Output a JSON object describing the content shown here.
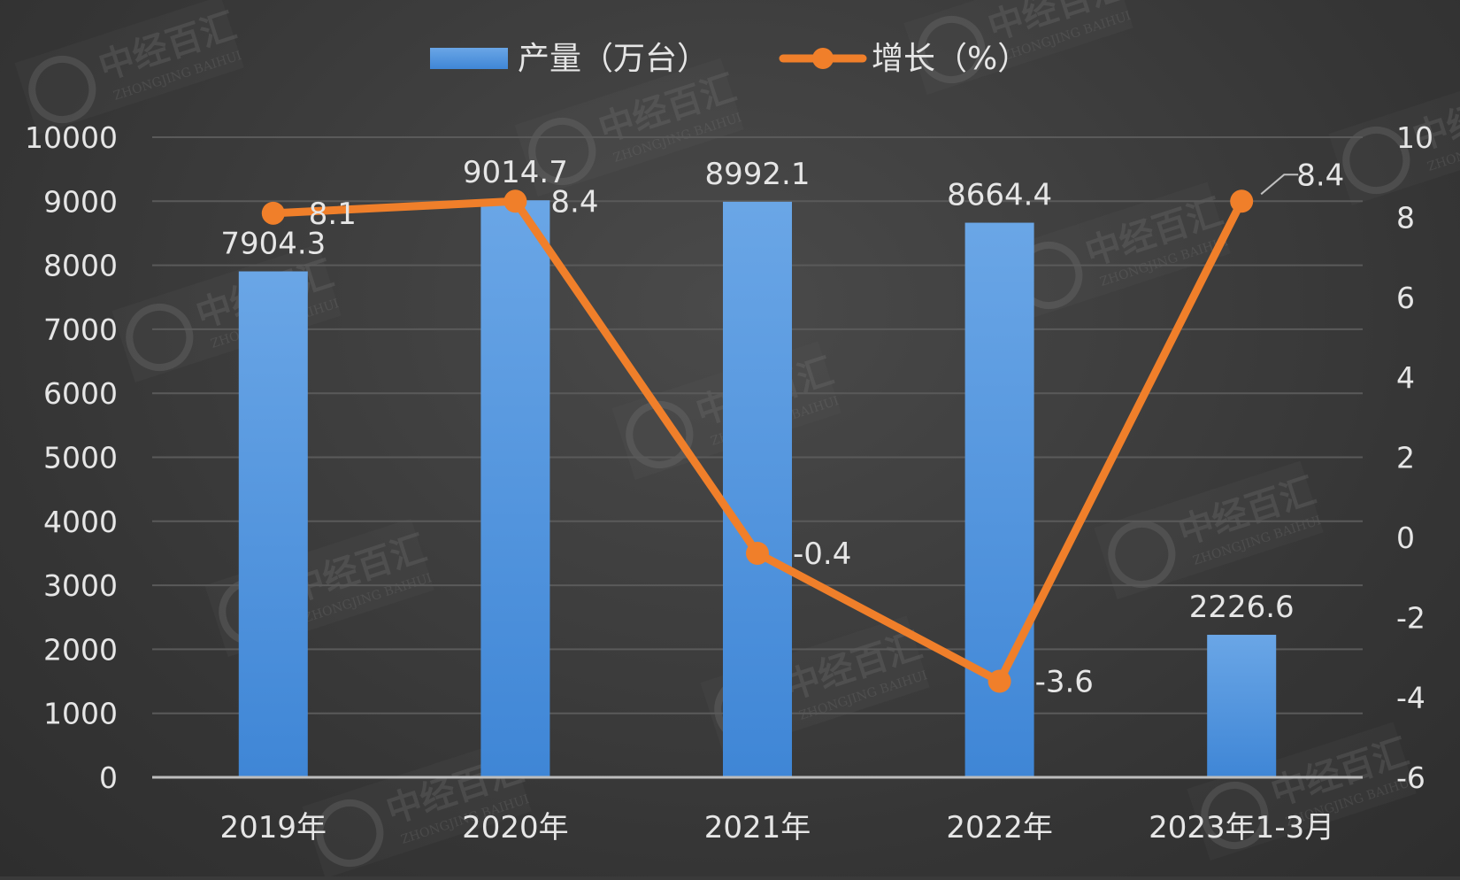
{
  "colors": {
    "bar": "#4a8fdc",
    "bar_top": "#6aa6e6",
    "line": "#f07f2a",
    "grid": "#5a5a5a",
    "axis": "#bdbdbd",
    "text": "#e6e6e6"
  },
  "watermark": {
    "text": "中经百汇",
    "sub": "ZHONGJING BAIHUI",
    "icon": "logo-circle-icon"
  },
  "chart_data": {
    "type": "bar",
    "categories": [
      "2019年",
      "2020年",
      "2021年",
      "2022年",
      "2023年1-3月"
    ],
    "series": [
      {
        "name": "产量（万台）",
        "type": "bar",
        "axis": "left",
        "values": [
          7904.3,
          9014.7,
          8992.1,
          8664.4,
          2226.6
        ],
        "labels": [
          "7904.3",
          "9014.7",
          "8992.1",
          "8664.4",
          "2226.6"
        ]
      },
      {
        "name": "增长（%）",
        "type": "line",
        "axis": "right",
        "values": [
          8.1,
          8.4,
          -0.4,
          -3.6,
          8.4
        ],
        "labels": [
          "8.1",
          "8.4",
          "-0.4",
          "-3.6",
          "8.4"
        ]
      }
    ],
    "y_left": {
      "range": [
        0,
        10000
      ],
      "ticks": [
        "0",
        "1000",
        "2000",
        "3000",
        "4000",
        "5000",
        "6000",
        "7000",
        "8000",
        "9000",
        "10000"
      ]
    },
    "y_right": {
      "range": [
        -6,
        10
      ],
      "ticks": [
        "-6",
        "-4",
        "-2",
        "0",
        "2",
        "4",
        "6",
        "8",
        "10"
      ]
    },
    "legend": {
      "position": "top-center"
    },
    "grid": true
  }
}
